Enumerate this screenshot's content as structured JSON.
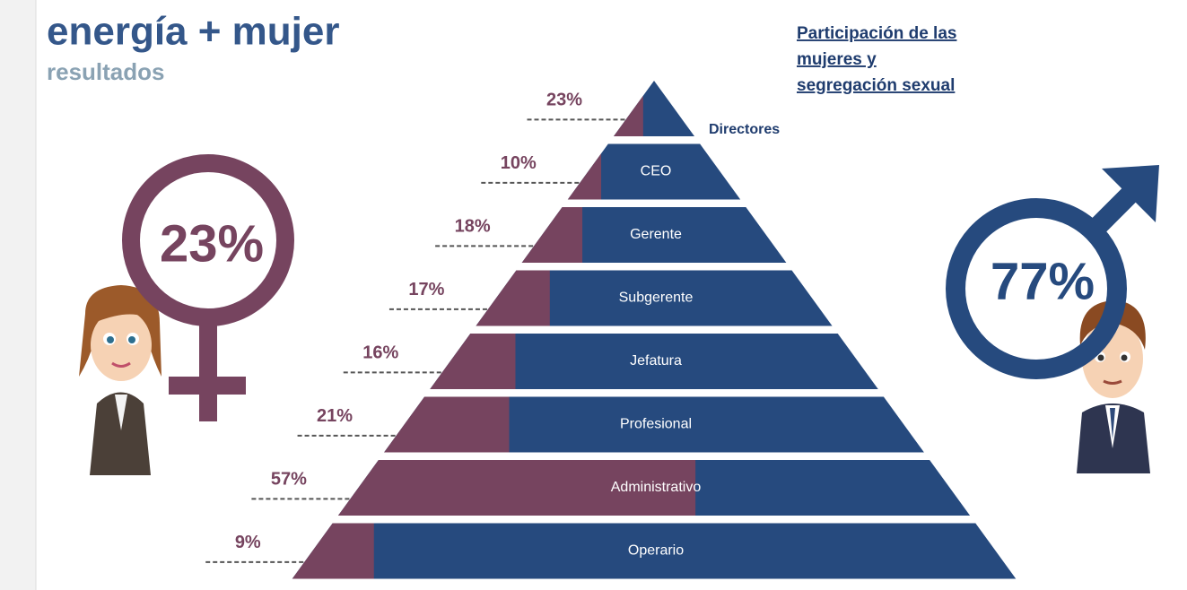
{
  "chart_data": {
    "type": "pyramid",
    "title": "energía + mujer",
    "subtitle": "resultados",
    "note_lines": [
      "Participación de las",
      "mujeres y",
      "segregación sexual"
    ],
    "categories": [
      "Directores",
      "CEO",
      "Gerente",
      "Subgerente",
      "Jefatura",
      "Profesional",
      "Administrativo",
      "Operario"
    ],
    "values": [
      23,
      10,
      18,
      17,
      16,
      21,
      57,
      9
    ],
    "value_labels": [
      "23%",
      "10%",
      "18%",
      "17%",
      "16%",
      "21%",
      "57%",
      "9%"
    ],
    "color": "#76445f",
    "base_color": "#264a7e",
    "totals": {
      "values": [
        23,
        77
      ],
      "value_labels": [
        "23%",
        "77%"
      ],
      "colors": [
        "#76445f",
        "#264a7e"
      ]
    }
  }
}
